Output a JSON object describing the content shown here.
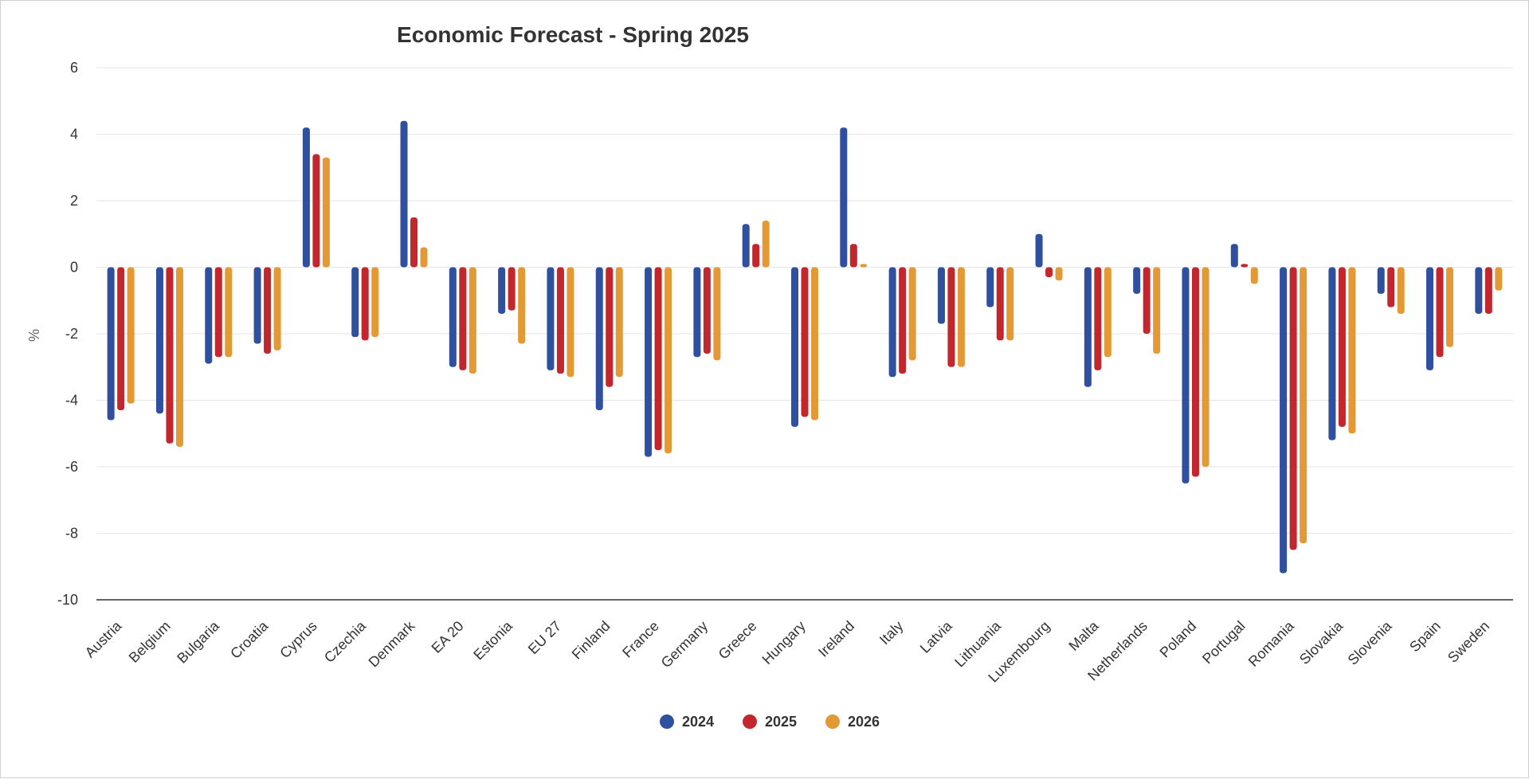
{
  "chart_data": {
    "type": "bar",
    "title": "Economic Forecast - Spring 2025",
    "xlabel": "",
    "ylabel": "%",
    "ylim": [
      -10,
      6
    ],
    "yticks": [
      "6",
      "4",
      "2",
      "0",
      "-2",
      "-4",
      "-6",
      "-8",
      "-10"
    ],
    "grid": true,
    "legend_position": "bottom",
    "categories": [
      "Austria",
      "Belgium",
      "Bulgaria",
      "Croatia",
      "Cyprus",
      "Czechia",
      "Denmark",
      "EA 20",
      "Estonia",
      "EU 27",
      "Finland",
      "France",
      "Germany",
      "Greece",
      "Hungary",
      "Ireland",
      "Italy",
      "Latvia",
      "Lithuania",
      "Luxembourg",
      "Malta",
      "Netherlands",
      "Poland",
      "Portugal",
      "Romania",
      "Slovakia",
      "Slovenia",
      "Spain",
      "Sweden"
    ],
    "series": [
      {
        "name": "2024",
        "color": "#2f4f9f",
        "values": [
          -4.6,
          -4.4,
          -2.9,
          -2.3,
          4.2,
          -2.1,
          4.4,
          -3.0,
          -1.4,
          -3.1,
          -4.3,
          -5.7,
          -2.7,
          1.3,
          -4.8,
          4.2,
          -3.3,
          -1.7,
          -1.2,
          1.0,
          -3.6,
          -0.8,
          -6.5,
          0.7,
          -9.2,
          -5.2,
          -0.8,
          -3.1,
          -1.4
        ]
      },
      {
        "name": "2025",
        "color": "#c1272d",
        "values": [
          -4.3,
          -5.3,
          -2.7,
          -2.6,
          3.4,
          -2.2,
          1.5,
          -3.1,
          -1.3,
          -3.2,
          -3.6,
          -5.5,
          -2.6,
          0.7,
          -4.5,
          0.7,
          -3.2,
          -3.0,
          -2.2,
          -0.3,
          -3.1,
          -2.0,
          -6.3,
          0.1,
          -8.5,
          -4.8,
          -1.2,
          -2.7,
          -1.4
        ]
      },
      {
        "name": "2026",
        "color": "#e39a36",
        "values": [
          -4.1,
          -5.4,
          -2.7,
          -2.5,
          3.3,
          -2.1,
          0.6,
          -3.2,
          -2.3,
          -3.3,
          -3.3,
          -5.6,
          -2.8,
          1.4,
          -4.6,
          0.1,
          -2.8,
          -3.0,
          -2.2,
          -0.4,
          -2.7,
          -2.6,
          -6.0,
          -0.5,
          -8.3,
          -5.0,
          -1.4,
          -2.4,
          -0.7
        ]
      }
    ]
  }
}
